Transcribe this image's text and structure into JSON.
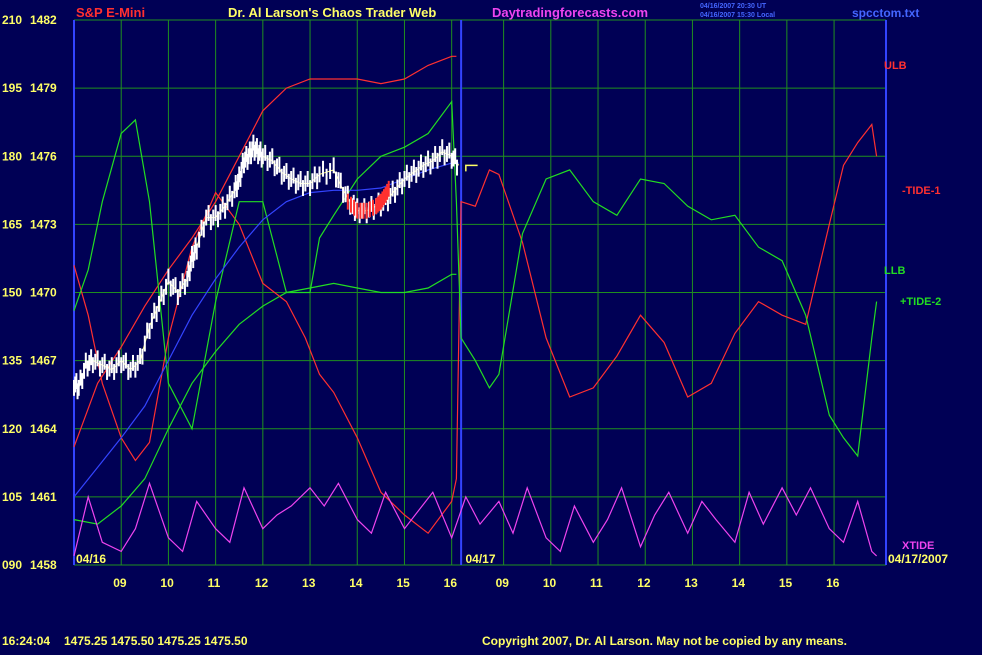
{
  "header": {
    "instrument": "S&P E-Mini",
    "site_title": "Dr. Al Larson's Chaos Trader Web",
    "site_url": "Daytradingforecasts.com",
    "stamp1": "04/16/2007 20:30 UT",
    "stamp2": "04/16/2007 15:30 Local",
    "file": "spcctom.txt"
  },
  "footer": {
    "time": "16:24:04",
    "quotes": "1475.25 1475.50 1475.25 1475.50",
    "copyright": "Copyright 2007, Dr. Al Larson. May not be copied by any means."
  },
  "colors": {
    "background": "#000055",
    "grid": "#1f8f1f",
    "price": "#ffffff",
    "red": "#ff3030",
    "green": "#22dd22",
    "magenta": "#ee44ee",
    "blue": "#3344ff",
    "axis_text": "#ffff66"
  },
  "chart_data": {
    "type": "line",
    "y_labels": [
      {
        "left": "210",
        "right": "1482"
      },
      {
        "left": "195",
        "right": "1479"
      },
      {
        "left": "180",
        "right": "1476"
      },
      {
        "left": "165",
        "right": "1473"
      },
      {
        "left": "150",
        "right": "1470"
      },
      {
        "left": "135",
        "right": "1467"
      },
      {
        "left": "120",
        "right": "1464"
      },
      {
        "left": "105",
        "right": "1461"
      },
      {
        "left": "090",
        "right": "1458"
      }
    ],
    "y_left_range": [
      90,
      210
    ],
    "y_right_range": [
      1458,
      1482
    ],
    "x_hour_labels": [
      "09",
      "10",
      "11",
      "12",
      "13",
      "14",
      "15",
      "16",
      "09",
      "10",
      "11",
      "12",
      "13",
      "14",
      "15",
      "16"
    ],
    "date_labels": [
      "04/16",
      "04/17",
      "04/17/2007"
    ],
    "grid": true,
    "series": [
      {
        "name": "ULB",
        "color": "#ff3030",
        "x": [
          8.0,
          8.5,
          9.0,
          9.5,
          10.0,
          10.5,
          11.0,
          11.5,
          12.0,
          12.5,
          13.0,
          13.5,
          14.0,
          14.5,
          15.0,
          15.5,
          16.0,
          16.1
        ],
        "values": [
          116,
          130,
          138,
          147,
          155,
          162,
          170,
          180,
          190,
          195,
          197,
          197,
          197,
          196,
          197,
          200,
          202,
          202
        ]
      },
      {
        "name": "LLB",
        "color": "#22dd22",
        "x": [
          8.0,
          8.5,
          9.0,
          9.5,
          10.0,
          10.5,
          11.0,
          11.5,
          12.0,
          12.5,
          13.0,
          13.5,
          14.0,
          14.5,
          15.0,
          15.5,
          16.0,
          16.1
        ],
        "values": [
          100,
          99,
          103,
          109,
          120,
          130,
          137,
          143,
          147,
          150,
          151,
          152,
          151,
          150,
          150,
          151,
          154,
          154
        ]
      },
      {
        "name": "-TIDE-1",
        "color": "#ff3030",
        "x": [
          8.0,
          8.3,
          8.6,
          9.0,
          9.3,
          9.6,
          10.0,
          10.5,
          11.0,
          11.5,
          12.0,
          12.5,
          12.9,
          13.2,
          13.5,
          14.0,
          14.5,
          15.0,
          15.5,
          16.0,
          16.1,
          16.2,
          16.5,
          16.8,
          17.0,
          17.5,
          18.0,
          18.5,
          19.0,
          19.5,
          20.0,
          20.5,
          21.0,
          21.5,
          22.0,
          22.5,
          23.0,
          23.5,
          24.0,
          24.3,
          24.6,
          24.9,
          25.0
        ],
        "values": [
          156,
          145,
          130,
          118,
          113,
          117,
          140,
          160,
          172,
          165,
          152,
          148,
          140,
          132,
          128,
          118,
          106,
          101,
          97,
          104,
          109,
          170,
          169,
          177,
          176,
          161,
          140,
          127,
          129,
          136,
          145,
          139,
          127,
          130,
          141,
          148,
          145,
          143,
          165,
          178,
          183,
          187,
          180
        ]
      },
      {
        "name": "+TIDE-2",
        "color": "#22dd22",
        "x": [
          8.0,
          8.3,
          8.6,
          9.0,
          9.3,
          9.6,
          10.0,
          10.5,
          11.0,
          11.5,
          12.0,
          12.5,
          13.0,
          13.2,
          13.5,
          14.0,
          14.5,
          15.0,
          15.5,
          16.0,
          16.1,
          16.2,
          16.5,
          16.8,
          17.0,
          17.5,
          18.0,
          18.5,
          19.0,
          19.5,
          20.0,
          20.5,
          21.0,
          21.5,
          22.0,
          22.5,
          23.0,
          23.5,
          24.0,
          24.3,
          24.6,
          24.9,
          25.0
        ],
        "values": [
          146,
          155,
          170,
          185,
          188,
          170,
          130,
          120,
          148,
          170,
          170,
          150,
          150,
          162,
          167,
          175,
          180,
          182,
          185,
          192,
          170,
          140,
          135,
          129,
          132,
          163,
          175,
          177,
          170,
          167,
          175,
          174,
          169,
          166,
          167,
          160,
          157,
          145,
          123,
          118,
          114,
          140,
          148
        ]
      },
      {
        "name": "XTIDE",
        "color": "#ee44ee",
        "x": [
          8.0,
          8.3,
          8.6,
          9.0,
          9.3,
          9.6,
          10.0,
          10.3,
          10.6,
          11.0,
          11.3,
          11.6,
          12.0,
          12.3,
          12.6,
          13.0,
          13.3,
          13.6,
          14.0,
          14.3,
          14.6,
          15.0,
          15.3,
          15.6,
          16.0,
          16.3,
          16.6,
          17.0,
          17.3,
          17.6,
          18.0,
          18.3,
          18.6,
          19.0,
          19.3,
          19.6,
          20.0,
          20.3,
          20.6,
          21.0,
          21.3,
          21.6,
          22.0,
          22.3,
          22.6,
          23.0,
          23.3,
          23.6,
          24.0,
          24.3,
          24.6,
          24.9,
          25.0
        ],
        "values": [
          92,
          105,
          95,
          93,
          98,
          108,
          96,
          93,
          104,
          98,
          95,
          107,
          98,
          101,
          103,
          107,
          103,
          108,
          100,
          97,
          106,
          98,
          102,
          106,
          96,
          105,
          99,
          104,
          97,
          107,
          96,
          93,
          103,
          95,
          100,
          107,
          94,
          101,
          106,
          97,
          104,
          100,
          95,
          106,
          99,
          107,
          101,
          107,
          98,
          95,
          104,
          93,
          92
        ]
      }
    ],
    "price": {
      "name": "price",
      "color": "#ffffff",
      "x": [
        8.0,
        8.1,
        8.25,
        8.4,
        8.6,
        8.8,
        9.0,
        9.2,
        9.4,
        9.6,
        9.8,
        10.0,
        10.2,
        10.4,
        10.5,
        10.6,
        10.8,
        11.0,
        11.2,
        11.4,
        11.5,
        11.6,
        11.7,
        11.8,
        11.9,
        12.0,
        12.2,
        12.4,
        12.6,
        12.8,
        13.0,
        13.2,
        13.5,
        13.7,
        13.9,
        14.0,
        14.2,
        14.4,
        14.6,
        14.8,
        15.0,
        15.2,
        15.4,
        15.6,
        15.8,
        16.0,
        16.15
      ],
      "values": [
        1466.0,
        1465.8,
        1466.8,
        1467.0,
        1466.8,
        1466.6,
        1467.0,
        1466.6,
        1467.0,
        1468.5,
        1469.5,
        1470.5,
        1470.0,
        1470.6,
        1471.5,
        1472.0,
        1473.3,
        1473.3,
        1473.8,
        1474.5,
        1475.0,
        1475.8,
        1476.0,
        1476.4,
        1476.2,
        1476.0,
        1475.8,
        1475.3,
        1475.0,
        1474.8,
        1474.8,
        1475.2,
        1475.4,
        1474.5,
        1473.8,
        1473.6,
        1473.6,
        1473.8,
        1474.0,
        1474.5,
        1475.0,
        1475.3,
        1475.6,
        1475.8,
        1476.2,
        1476.0,
        1475.6
      ]
    },
    "red_segment": {
      "name": "price-red",
      "color": "#ff3030",
      "x": [
        13.8,
        14.0,
        14.2,
        14.4,
        14.5,
        14.6,
        14.7
      ],
      "values": [
        1474.0,
        1473.6,
        1473.6,
        1473.8,
        1474.0,
        1474.3,
        1474.7
      ]
    },
    "average": {
      "name": "average",
      "color": "#3344ff",
      "x": [
        8.0,
        8.5,
        9.0,
        9.5,
        10.0,
        10.5,
        11.0,
        11.5,
        12.0,
        12.5,
        13.0,
        13.5,
        14.0,
        14.5,
        15.0,
        15.5,
        16.0,
        16.15
      ],
      "values": [
        1461.0,
        1462.3,
        1463.6,
        1465.0,
        1467.0,
        1469.0,
        1470.6,
        1472.0,
        1473.2,
        1474.0,
        1474.4,
        1474.5,
        1474.5,
        1474.6,
        1475.0,
        1475.4,
        1475.7,
        1475.7
      ]
    }
  }
}
